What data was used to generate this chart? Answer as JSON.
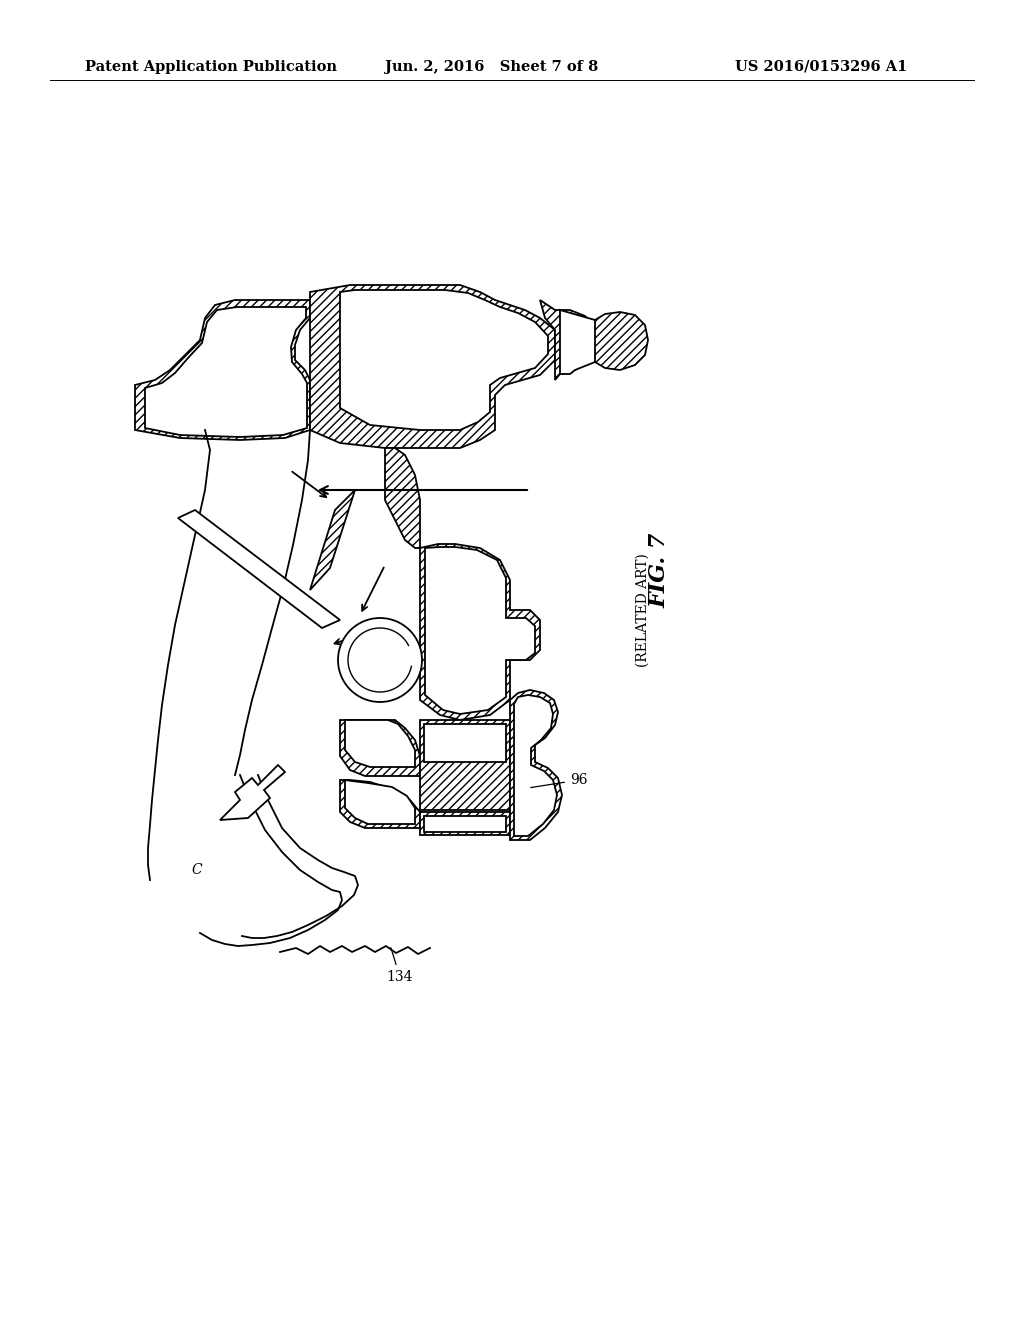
{
  "header_left": "Patent Application Publication",
  "header_center": "Jun. 2, 2016   Sheet 7 of 8",
  "header_right": "US 2016/0153296 A1",
  "fig_label": "FIG. 7",
  "fig_sublabel": "(RELATED ART)",
  "label_96": "96",
  "label_134": "134",
  "label_c": "C",
  "bg_color": "#ffffff",
  "line_color": "#000000"
}
